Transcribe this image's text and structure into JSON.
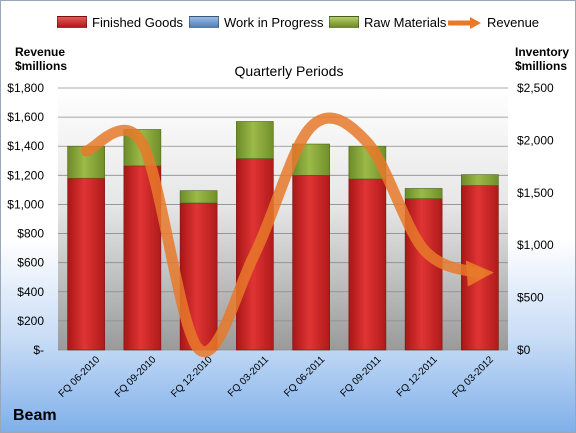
{
  "legend": {
    "finished": "Finished Goods",
    "wip": "Work in Progress",
    "raw": "Raw Materials",
    "revenue": "Revenue"
  },
  "left_title": [
    "Revenue",
    "$millions"
  ],
  "right_title": [
    "Inventory",
    "$millions"
  ],
  "brand": "Beam",
  "colors": {
    "finished": "#cc1f1f",
    "wip": "#4f81bd",
    "raw": "#8aa63a",
    "revenue": "#e8792a"
  },
  "chart_data": {
    "type": "bar",
    "title": "Quarterly Periods",
    "categories": [
      "FQ 06-2010",
      "FQ 09-2010",
      "FQ 12-2010",
      "FQ 03-2011",
      "FQ 06-2011",
      "FQ 09-2011",
      "FQ 12-2011",
      "FQ 03-2012"
    ],
    "series": [
      {
        "name": "Finished Goods",
        "values": [
          1180,
          1265,
          1010,
          1315,
          1200,
          1175,
          1040,
          1130
        ]
      },
      {
        "name": "Work in Progress",
        "values": [
          0,
          0,
          0,
          0,
          0,
          0,
          0,
          0
        ]
      },
      {
        "name": "Raw Materials",
        "values": [
          220,
          250,
          85,
          255,
          215,
          225,
          70,
          75
        ]
      },
      {
        "name": "Revenue",
        "values": [
          1900,
          1970,
          10,
          920,
          2130,
          1980,
          960,
          730
        ]
      }
    ],
    "y_left": {
      "min": 0,
      "max": 1800,
      "step": 200,
      "ticks": [
        "$-",
        "$200",
        "$400",
        "$600",
        "$800",
        "$1,000",
        "$1,200",
        "$1,400",
        "$1,600",
        "$1,800"
      ]
    },
    "y_right": {
      "min": 0,
      "max": 2500,
      "step": 500,
      "ticks": [
        "$0",
        "$500",
        "$1,000",
        "$1,500",
        "$2,000",
        "$2,500"
      ]
    },
    "grid": true
  }
}
